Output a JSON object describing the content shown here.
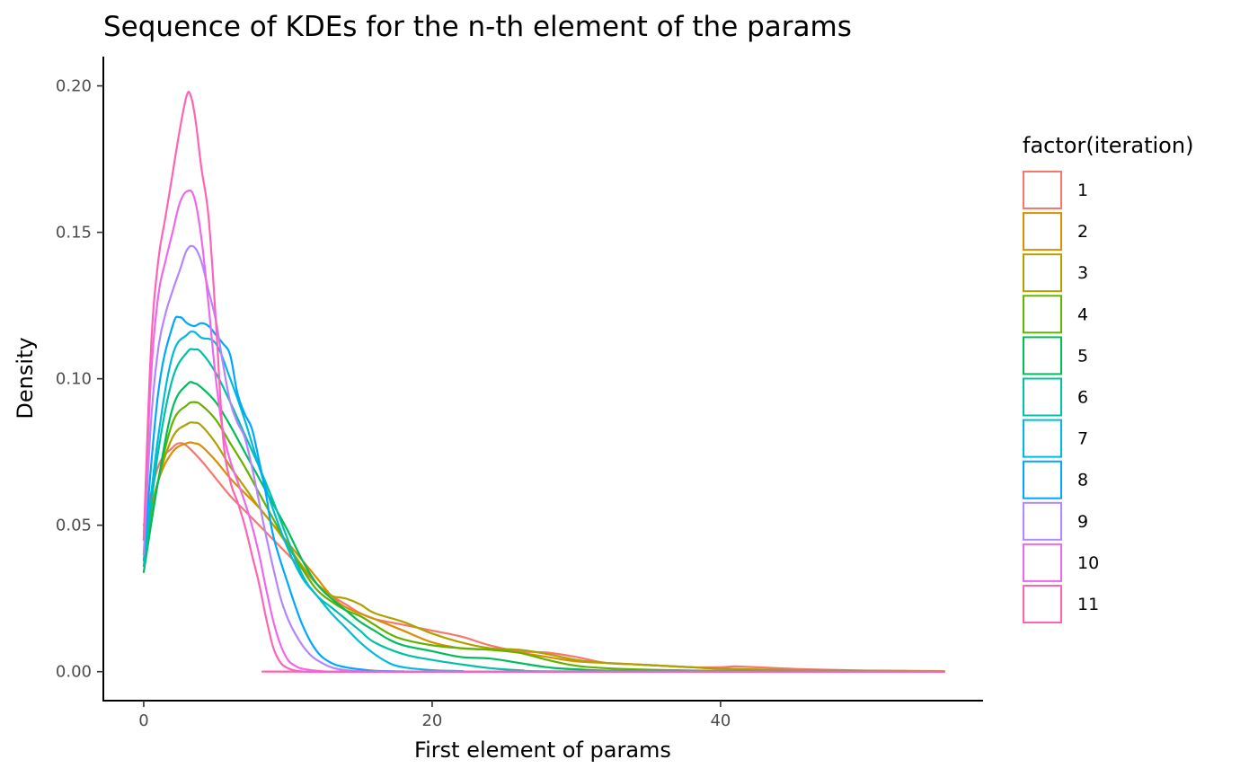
{
  "chart_data": {
    "type": "line",
    "title": "Sequence of KDEs for the n-th element of the params",
    "xlabel": "First element of params",
    "ylabel": "Density",
    "xlim": [
      -2.8,
      58.2
    ],
    "ylim": [
      -0.0099,
      0.21
    ],
    "x_ticks": [
      0,
      20,
      40
    ],
    "x_tick_labels": [
      "0",
      "20",
      "40"
    ],
    "y_ticks": [
      0,
      0.05,
      0.1,
      0.15,
      0.2
    ],
    "y_tick_labels": [
      "0.00",
      "0.05",
      "0.10",
      "0.15",
      "0.20"
    ],
    "grid": false,
    "legend": {
      "title": "factor(iteration)",
      "position": "right"
    },
    "series": [
      {
        "name": "1",
        "color": "#F8766D",
        "x": [
          0,
          1,
          2,
          2.5,
          3,
          4,
          5,
          6,
          7,
          8,
          9,
          10,
          11,
          12,
          13,
          14,
          15,
          16,
          18,
          20,
          22,
          24,
          26,
          28,
          30,
          32,
          34,
          36,
          38,
          40,
          41,
          42,
          44,
          46,
          50,
          55.5
        ],
        "y": [
          0.05,
          0.07,
          0.0765,
          0.078,
          0.077,
          0.072,
          0.066,
          0.06,
          0.055,
          0.05,
          0.045,
          0.04,
          0.035,
          0.03,
          0.026,
          0.023,
          0.02,
          0.018,
          0.016,
          0.014,
          0.012,
          0.009,
          0.007,
          0.0065,
          0.005,
          0.003,
          0.0025,
          0.002,
          0.0015,
          0.0015,
          0.0018,
          0.0016,
          0.0012,
          0.0008,
          0.0004,
          0.0002
        ]
      },
      {
        "name": "2",
        "color": "#DB8E00",
        "x": [
          0,
          1,
          2,
          3,
          3.5,
          4,
          5,
          6,
          7,
          8,
          9,
          10,
          11,
          12,
          13,
          14,
          16,
          18,
          20,
          22,
          24,
          26,
          28,
          30,
          32,
          34,
          36,
          38,
          40,
          42,
          44,
          46,
          50,
          55.5
        ],
        "y": [
          0.045,
          0.065,
          0.075,
          0.078,
          0.078,
          0.077,
          0.072,
          0.066,
          0.061,
          0.056,
          0.05,
          0.044,
          0.038,
          0.032,
          0.026,
          0.022,
          0.018,
          0.014,
          0.01,
          0.008,
          0.0075,
          0.0065,
          0.005,
          0.0035,
          0.003,
          0.0025,
          0.002,
          0.0015,
          0.001,
          0.0008,
          0.0006,
          0.0005,
          0.0003,
          0.0001
        ]
      },
      {
        "name": "3",
        "color": "#AEA200",
        "x": [
          0,
          1,
          2,
          3,
          3.5,
          4,
          5,
          6,
          7,
          8,
          9,
          10,
          11,
          12,
          13,
          14,
          15,
          16,
          18,
          20,
          22,
          24,
          26,
          28,
          30,
          32,
          34,
          36,
          38,
          40,
          45,
          55.5
        ],
        "y": [
          0.04,
          0.065,
          0.08,
          0.0845,
          0.085,
          0.084,
          0.078,
          0.07,
          0.063,
          0.056,
          0.05,
          0.043,
          0.036,
          0.03,
          0.026,
          0.025,
          0.023,
          0.02,
          0.017,
          0.013,
          0.01,
          0.008,
          0.0075,
          0.006,
          0.004,
          0.003,
          0.0025,
          0.002,
          0.0015,
          0.001,
          0.0005,
          0.0001
        ]
      },
      {
        "name": "4",
        "color": "#64B200",
        "x": [
          0,
          1,
          2,
          3,
          3.5,
          4,
          5,
          6,
          7,
          8,
          9,
          10,
          11,
          12,
          13,
          14,
          15,
          16,
          17,
          18,
          20,
          22,
          24,
          26,
          28,
          30,
          32,
          34,
          40,
          55.5
        ],
        "y": [
          0.038,
          0.065,
          0.085,
          0.091,
          0.092,
          0.091,
          0.086,
          0.078,
          0.07,
          0.061,
          0.052,
          0.043,
          0.035,
          0.028,
          0.024,
          0.021,
          0.019,
          0.016,
          0.013,
          0.011,
          0.009,
          0.008,
          0.0075,
          0.0065,
          0.004,
          0.002,
          0.0012,
          0.0008,
          0.0003,
          0.0001
        ]
      },
      {
        "name": "5",
        "color": "#00BD5C",
        "x": [
          0,
          1,
          2,
          3,
          3.5,
          4,
          5,
          6,
          7,
          8,
          9,
          10,
          11,
          12,
          13,
          14,
          15,
          16,
          17,
          18,
          20,
          22,
          24,
          26,
          28,
          30,
          35,
          55.5
        ],
        "y": [
          0.034,
          0.065,
          0.09,
          0.098,
          0.0985,
          0.097,
          0.092,
          0.084,
          0.075,
          0.066,
          0.057,
          0.048,
          0.038,
          0.03,
          0.025,
          0.021,
          0.017,
          0.014,
          0.011,
          0.009,
          0.007,
          0.005,
          0.0045,
          0.003,
          0.0015,
          0.0008,
          0.0002,
          0
        ]
      },
      {
        "name": "6",
        "color": "#00C1A7",
        "x": [
          0,
          1,
          2,
          3,
          3.5,
          4,
          5,
          6,
          7,
          8,
          9,
          10,
          11,
          12,
          13,
          14,
          15,
          16,
          18,
          20,
          22,
          24,
          26,
          30,
          55.5
        ],
        "y": [
          0.036,
          0.075,
          0.1,
          0.109,
          0.11,
          0.109,
          0.102,
          0.092,
          0.081,
          0.07,
          0.058,
          0.045,
          0.033,
          0.026,
          0.022,
          0.018,
          0.014,
          0.01,
          0.006,
          0.004,
          0.0025,
          0.0012,
          0.0005,
          0.0001,
          0
        ]
      },
      {
        "name": "7",
        "color": "#00BADE",
        "x": [
          0,
          1,
          2,
          3,
          3.5,
          4,
          5,
          6,
          7,
          8,
          9,
          10,
          11,
          12,
          13,
          14,
          15,
          16,
          17,
          18,
          20,
          22,
          25,
          55.5
        ],
        "y": [
          0.038,
          0.08,
          0.108,
          0.115,
          0.116,
          0.114,
          0.112,
          0.1,
          0.086,
          0.07,
          0.055,
          0.042,
          0.032,
          0.026,
          0.02,
          0.015,
          0.01,
          0.006,
          0.003,
          0.0015,
          0.0005,
          0.0002,
          0,
          0
        ]
      },
      {
        "name": "8",
        "color": "#00A6FF",
        "x": [
          0,
          1,
          2,
          2.5,
          3,
          3.5,
          4,
          4.5,
          5,
          5.5,
          6,
          6.5,
          7,
          7.5,
          8,
          8.5,
          9,
          10,
          11,
          12,
          13,
          14,
          15,
          16,
          18,
          20,
          55.5
        ],
        "y": [
          0.04,
          0.095,
          0.118,
          0.121,
          0.119,
          0.118,
          0.119,
          0.118,
          0.115,
          0.112,
          0.108,
          0.095,
          0.088,
          0.083,
          0.072,
          0.06,
          0.046,
          0.03,
          0.016,
          0.007,
          0.003,
          0.0015,
          0.0008,
          0.0003,
          0.0001,
          0,
          0
        ]
      },
      {
        "name": "9",
        "color": "#B385FF",
        "x": [
          0,
          0.5,
          1,
          1.5,
          2,
          2.5,
          3,
          3.5,
          4,
          4.5,
          5,
          5.5,
          6,
          6.5,
          7,
          7.5,
          8,
          8.5,
          9,
          9.5,
          10,
          10.5,
          11,
          11.5,
          12,
          13,
          14,
          15,
          17,
          55.5
        ],
        "y": [
          0.04,
          0.085,
          0.11,
          0.122,
          0.13,
          0.137,
          0.144,
          0.145,
          0.14,
          0.13,
          0.12,
          0.105,
          0.092,
          0.085,
          0.08,
          0.07,
          0.058,
          0.046,
          0.035,
          0.025,
          0.018,
          0.013,
          0.009,
          0.006,
          0.004,
          0.0015,
          0.0005,
          0.0002,
          0,
          0
        ]
      },
      {
        "name": "10",
        "color": "#EF67EB",
        "x": [
          0,
          0.5,
          1,
          1.5,
          2,
          2.5,
          3,
          3.5,
          4,
          4.5,
          5,
          5.5,
          6,
          6.5,
          7,
          7.5,
          8,
          8.5,
          9,
          9.5,
          10,
          10.5,
          11,
          12,
          13,
          15,
          55.5
        ],
        "y": [
          0.045,
          0.1,
          0.128,
          0.14,
          0.15,
          0.16,
          0.164,
          0.162,
          0.148,
          0.125,
          0.1,
          0.082,
          0.072,
          0.065,
          0.058,
          0.05,
          0.04,
          0.028,
          0.017,
          0.009,
          0.004,
          0.002,
          0.001,
          0.0003,
          0,
          0,
          0
        ]
      },
      {
        "name": "11",
        "color": "#FF63B6",
        "x": [
          0,
          0.5,
          1,
          1.5,
          2,
          2.5,
          3,
          3.3,
          3.6,
          4,
          4.5,
          5,
          5.5,
          6,
          6.5,
          7,
          7.5,
          8,
          8.5,
          9,
          9.5,
          10,
          10.5,
          11,
          12,
          55.5
        ],
        "y": [
          0.045,
          0.11,
          0.14,
          0.155,
          0.17,
          0.185,
          0.197,
          0.196,
          0.188,
          0.172,
          0.155,
          0.12,
          0.08,
          0.065,
          0.058,
          0.05,
          0.04,
          0.03,
          0.018,
          0.008,
          0.003,
          0.0012,
          0.0004,
          0.0001,
          0,
          0
        ]
      }
    ]
  }
}
